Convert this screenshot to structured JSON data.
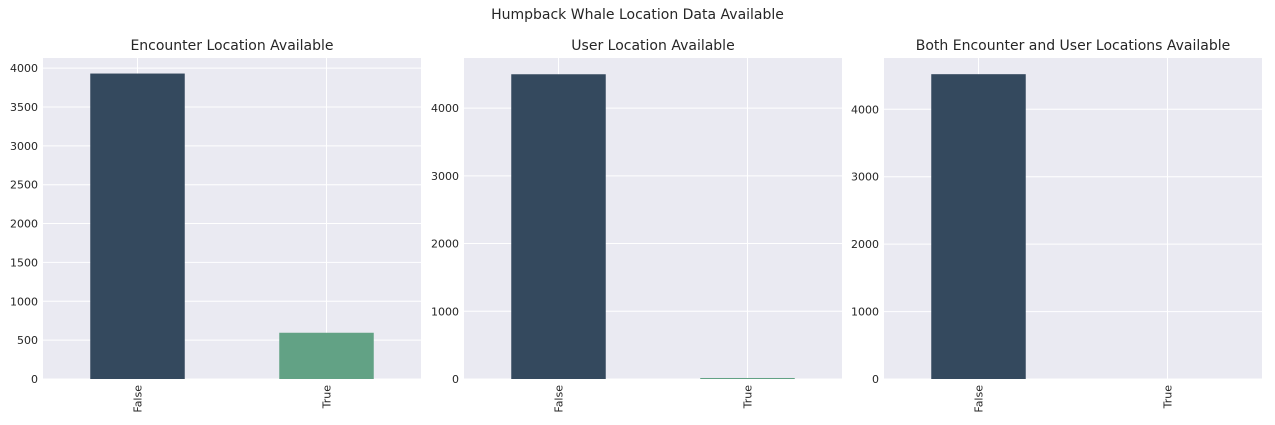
{
  "figure": {
    "suptitle": "Humpback Whale Location Data Available"
  },
  "colors": {
    "plot_background": "#eaeaf2",
    "grid": "#ffffff",
    "false_bar": "#34495e",
    "true_bar": "#62a285",
    "text": "#262626"
  },
  "chart_data": [
    {
      "type": "bar",
      "title": "Encounter Location Available",
      "categories": [
        "False",
        "True"
      ],
      "values": [
        3930,
        595
      ],
      "ylim": [
        0,
        4130
      ],
      "yticks": [
        0,
        500,
        1000,
        1500,
        2000,
        2500,
        3000,
        3500,
        4000
      ],
      "xlabel": "",
      "ylabel": "",
      "grid": true,
      "bar_colors": [
        "#34495e",
        "#62a285"
      ]
    },
    {
      "type": "bar",
      "title": "User Location Available",
      "categories": [
        "False",
        "True"
      ],
      "values": [
        4500,
        15
      ],
      "ylim": [
        0,
        4740
      ],
      "yticks": [
        0,
        1000,
        2000,
        3000,
        4000
      ],
      "xlabel": "",
      "ylabel": "",
      "grid": true,
      "bar_colors": [
        "#34495e",
        "#62a285"
      ]
    },
    {
      "type": "bar",
      "title": "Both Encounter and User Locations Available",
      "categories": [
        "False",
        "True"
      ],
      "values": [
        4520,
        0
      ],
      "ylim": [
        0,
        4760
      ],
      "yticks": [
        0,
        1000,
        2000,
        3000,
        4000
      ],
      "xlabel": "",
      "ylabel": "",
      "grid": true,
      "bar_colors": [
        "#34495e",
        "#62a285"
      ]
    }
  ]
}
